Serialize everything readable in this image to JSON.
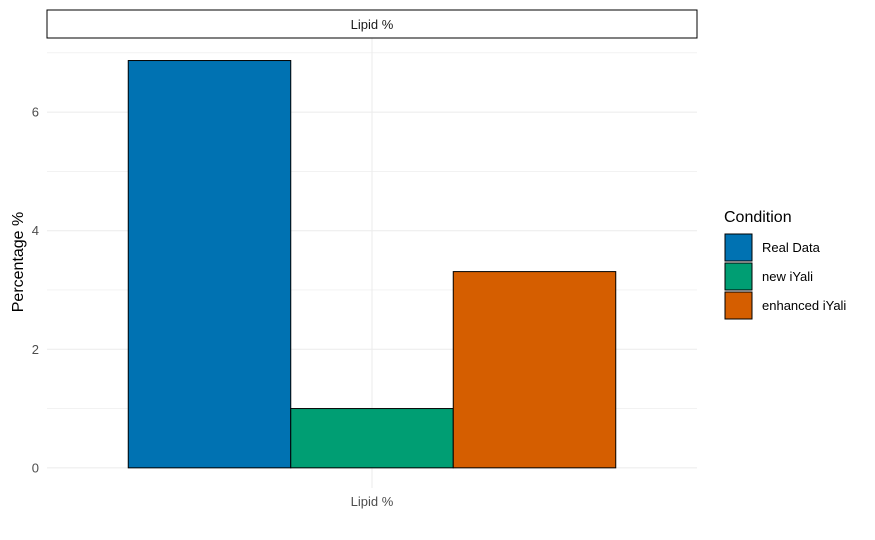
{
  "chart_data": {
    "type": "bar",
    "facet_label": "Lipid %",
    "categories": [
      "Lipid %"
    ],
    "series": [
      {
        "name": "Real Data",
        "values": [
          6.87
        ],
        "color": "#0072B2"
      },
      {
        "name": "new iYali",
        "values": [
          1.0
        ],
        "color": "#009E73"
      },
      {
        "name": "enhanced iYali",
        "values": [
          3.31
        ],
        "color": "#D55E00"
      }
    ],
    "xlabel": "",
    "ylabel": "Percentage %",
    "ylim": [
      -0.34,
      7.25
    ],
    "yticks": [
      0,
      2,
      4,
      6
    ],
    "grid": true,
    "legend": {
      "title": "Condition",
      "position": "right"
    }
  }
}
